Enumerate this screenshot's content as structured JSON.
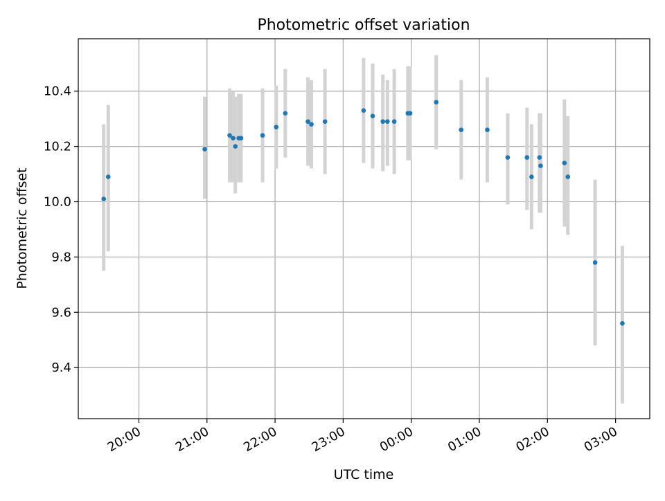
{
  "chart_data": {
    "type": "scatter",
    "title": "Photometric offset variation",
    "xlabel": "UTC time",
    "ylabel": "Photometric offset",
    "x_tick_labels": [
      "20:00",
      "21:00",
      "22:00",
      "23:00",
      "00:00",
      "01:00",
      "02:00",
      "03:00"
    ],
    "y_tick_labels": [
      "9.4",
      "9.6",
      "9.8",
      "10.0",
      "10.2",
      "10.4"
    ],
    "grid": true,
    "colors": {
      "points": "#1f77b4",
      "error_bars": "#d3d3d3",
      "grid": "#b0b0b0"
    },
    "points": [
      {
        "x": "19:29",
        "y": 10.01,
        "err_low": 9.75,
        "err_high": 10.28
      },
      {
        "x": "19:33",
        "y": 10.09,
        "err_low": 9.82,
        "err_high": 10.35
      },
      {
        "x": "20:58",
        "y": 10.19,
        "err_low": 10.01,
        "err_high": 10.38
      },
      {
        "x": "21:20",
        "y": 10.24,
        "err_low": 10.07,
        "err_high": 10.41
      },
      {
        "x": "21:23",
        "y": 10.23,
        "err_low": 10.07,
        "err_high": 10.4
      },
      {
        "x": "21:25",
        "y": 10.2,
        "err_low": 10.03,
        "err_high": 10.38
      },
      {
        "x": "21:28",
        "y": 10.23,
        "err_low": 10.07,
        "err_high": 10.39
      },
      {
        "x": "21:30",
        "y": 10.23,
        "err_low": 10.07,
        "err_high": 10.39
      },
      {
        "x": "21:49",
        "y": 10.24,
        "err_low": 10.07,
        "err_high": 10.41
      },
      {
        "x": "22:01",
        "y": 10.27,
        "err_low": 10.12,
        "err_high": 10.42
      },
      {
        "x": "22:09",
        "y": 10.32,
        "err_low": 10.16,
        "err_high": 10.48
      },
      {
        "x": "22:29",
        "y": 10.29,
        "err_low": 10.13,
        "err_high": 10.45
      },
      {
        "x": "22:32",
        "y": 10.28,
        "err_low": 10.12,
        "err_high": 10.44
      },
      {
        "x": "22:44",
        "y": 10.29,
        "err_low": 10.1,
        "err_high": 10.48
      },
      {
        "x": "23:18",
        "y": 10.33,
        "err_low": 10.14,
        "err_high": 10.52
      },
      {
        "x": "23:26",
        "y": 10.31,
        "err_low": 10.12,
        "err_high": 10.5
      },
      {
        "x": "23:35",
        "y": 10.29,
        "err_low": 10.11,
        "err_high": 10.46
      },
      {
        "x": "23:39",
        "y": 10.29,
        "err_low": 10.13,
        "err_high": 10.44
      },
      {
        "x": "23:45",
        "y": 10.29,
        "err_low": 10.1,
        "err_high": 10.48
      },
      {
        "x": "23:57",
        "y": 10.32,
        "err_low": 10.15,
        "err_high": 10.49
      },
      {
        "x": "23:59",
        "y": 10.32,
        "err_low": 10.15,
        "err_high": 10.49
      },
      {
        "x": "00:22",
        "y": 10.36,
        "err_low": 10.19,
        "err_high": 10.53
      },
      {
        "x": "00:44",
        "y": 10.26,
        "err_low": 10.08,
        "err_high": 10.44
      },
      {
        "x": "01:07",
        "y": 10.26,
        "err_low": 10.07,
        "err_high": 10.45
      },
      {
        "x": "01:25",
        "y": 10.16,
        "err_low": 9.99,
        "err_high": 10.32
      },
      {
        "x": "01:42",
        "y": 10.16,
        "err_low": 9.97,
        "err_high": 10.34
      },
      {
        "x": "01:46",
        "y": 10.09,
        "err_low": 9.9,
        "err_high": 10.28
      },
      {
        "x": "01:53",
        "y": 10.16,
        "err_low": 9.96,
        "err_high": 10.32
      },
      {
        "x": "01:54",
        "y": 10.13,
        "err_low": 9.96,
        "err_high": 10.32
      },
      {
        "x": "02:15",
        "y": 10.14,
        "err_low": 9.91,
        "err_high": 10.37
      },
      {
        "x": "02:18",
        "y": 10.09,
        "err_low": 9.88,
        "err_high": 10.31
      },
      {
        "x": "02:42",
        "y": 9.78,
        "err_low": 9.48,
        "err_high": 10.08
      },
      {
        "x": "03:06",
        "y": 9.56,
        "err_low": 9.27,
        "err_high": 9.84
      }
    ]
  }
}
